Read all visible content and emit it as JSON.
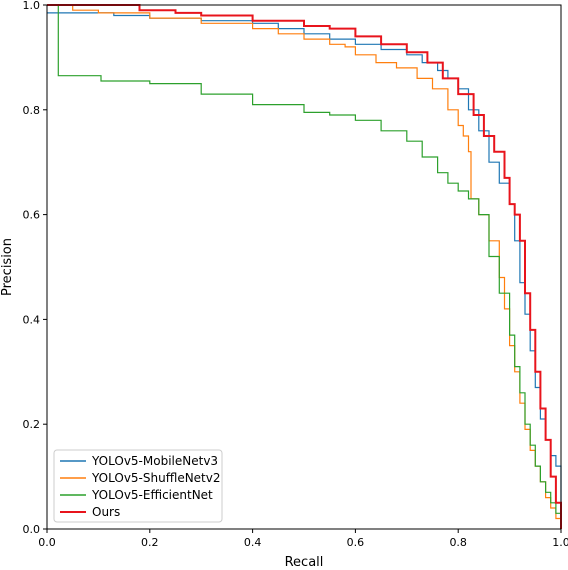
{
  "chart_data": {
    "type": "line",
    "title": "",
    "xlabel": "Recall",
    "ylabel": "Precision",
    "xlim": [
      0.0,
      1.0
    ],
    "ylim": [
      0.0,
      1.0
    ],
    "xticks": [
      "0.0",
      "0.2",
      "0.4",
      "0.6",
      "0.8",
      "1.0"
    ],
    "yticks": [
      "0.0",
      "0.2",
      "0.4",
      "0.6",
      "0.8",
      "1.0"
    ],
    "grid": false,
    "legend_position": "lower-left",
    "series": [
      {
        "name": "YOLOv5-MobileNetv3",
        "color": "#1f77b4",
        "points": [
          [
            0.0,
            0.985
          ],
          [
            0.12,
            0.985
          ],
          [
            0.13,
            0.98
          ],
          [
            0.2,
            0.975
          ],
          [
            0.3,
            0.97
          ],
          [
            0.4,
            0.965
          ],
          [
            0.45,
            0.955
          ],
          [
            0.5,
            0.945
          ],
          [
            0.55,
            0.935
          ],
          [
            0.6,
            0.925
          ],
          [
            0.65,
            0.915
          ],
          [
            0.7,
            0.905
          ],
          [
            0.73,
            0.89
          ],
          [
            0.76,
            0.875
          ],
          [
            0.78,
            0.86
          ],
          [
            0.8,
            0.84
          ],
          [
            0.82,
            0.8
          ],
          [
            0.84,
            0.76
          ],
          [
            0.86,
            0.7
          ],
          [
            0.88,
            0.66
          ],
          [
            0.9,
            0.62
          ],
          [
            0.91,
            0.55
          ],
          [
            0.92,
            0.47
          ],
          [
            0.93,
            0.41
          ],
          [
            0.94,
            0.34
          ],
          [
            0.95,
            0.27
          ],
          [
            0.96,
            0.21
          ],
          [
            0.97,
            0.17
          ],
          [
            0.98,
            0.14
          ],
          [
            0.99,
            0.12
          ],
          [
            1.0,
            0.0
          ]
        ]
      },
      {
        "name": "YOLOv5-ShuffleNetv2",
        "color": "#ff7f0e",
        "points": [
          [
            0.0,
            1.0
          ],
          [
            0.03,
            1.0
          ],
          [
            0.05,
            0.99
          ],
          [
            0.1,
            0.985
          ],
          [
            0.2,
            0.975
          ],
          [
            0.3,
            0.965
          ],
          [
            0.4,
            0.955
          ],
          [
            0.45,
            0.945
          ],
          [
            0.5,
            0.935
          ],
          [
            0.55,
            0.925
          ],
          [
            0.58,
            0.92
          ],
          [
            0.6,
            0.905
          ],
          [
            0.64,
            0.89
          ],
          [
            0.68,
            0.88
          ],
          [
            0.72,
            0.86
          ],
          [
            0.75,
            0.84
          ],
          [
            0.78,
            0.8
          ],
          [
            0.8,
            0.77
          ],
          [
            0.81,
            0.75
          ],
          [
            0.82,
            0.72
          ],
          [
            0.825,
            0.63
          ],
          [
            0.84,
            0.6
          ],
          [
            0.86,
            0.55
          ],
          [
            0.88,
            0.48
          ],
          [
            0.89,
            0.42
          ],
          [
            0.9,
            0.35
          ],
          [
            0.91,
            0.3
          ],
          [
            0.92,
            0.24
          ],
          [
            0.93,
            0.19
          ],
          [
            0.94,
            0.15
          ],
          [
            0.95,
            0.12
          ],
          [
            0.96,
            0.09
          ],
          [
            0.97,
            0.06
          ],
          [
            0.98,
            0.04
          ],
          [
            0.99,
            0.02
          ],
          [
            1.0,
            0.0
          ]
        ]
      },
      {
        "name": "YOLOv5-EfficientNet",
        "color": "#2ca02c",
        "points": [
          [
            0.0,
            1.0
          ],
          [
            0.02,
            1.0
          ],
          [
            0.022,
            0.865
          ],
          [
            0.1,
            0.865
          ],
          [
            0.105,
            0.855
          ],
          [
            0.2,
            0.85
          ],
          [
            0.3,
            0.83
          ],
          [
            0.4,
            0.81
          ],
          [
            0.5,
            0.795
          ],
          [
            0.55,
            0.79
          ],
          [
            0.6,
            0.78
          ],
          [
            0.65,
            0.76
          ],
          [
            0.7,
            0.74
          ],
          [
            0.73,
            0.71
          ],
          [
            0.76,
            0.68
          ],
          [
            0.78,
            0.66
          ],
          [
            0.8,
            0.645
          ],
          [
            0.82,
            0.63
          ],
          [
            0.84,
            0.6
          ],
          [
            0.86,
            0.52
          ],
          [
            0.88,
            0.45
          ],
          [
            0.9,
            0.37
          ],
          [
            0.91,
            0.31
          ],
          [
            0.92,
            0.26
          ],
          [
            0.93,
            0.2
          ],
          [
            0.94,
            0.16
          ],
          [
            0.95,
            0.12
          ],
          [
            0.96,
            0.09
          ],
          [
            0.97,
            0.07
          ],
          [
            0.98,
            0.05
          ],
          [
            0.99,
            0.03
          ],
          [
            1.0,
            0.0
          ]
        ]
      },
      {
        "name": "Ours",
        "color": "#e8141c",
        "points": [
          [
            0.0,
            1.0
          ],
          [
            0.1,
            1.0
          ],
          [
            0.18,
            0.99
          ],
          [
            0.25,
            0.985
          ],
          [
            0.3,
            0.98
          ],
          [
            0.4,
            0.97
          ],
          [
            0.5,
            0.96
          ],
          [
            0.55,
            0.955
          ],
          [
            0.6,
            0.94
          ],
          [
            0.65,
            0.925
          ],
          [
            0.7,
            0.91
          ],
          [
            0.74,
            0.89
          ],
          [
            0.77,
            0.86
          ],
          [
            0.8,
            0.83
          ],
          [
            0.83,
            0.79
          ],
          [
            0.85,
            0.75
          ],
          [
            0.87,
            0.72
          ],
          [
            0.89,
            0.67
          ],
          [
            0.9,
            0.62
          ],
          [
            0.91,
            0.6
          ],
          [
            0.92,
            0.55
          ],
          [
            0.93,
            0.45
          ],
          [
            0.94,
            0.38
          ],
          [
            0.95,
            0.3
          ],
          [
            0.96,
            0.23
          ],
          [
            0.97,
            0.17
          ],
          [
            0.98,
            0.1
          ],
          [
            0.99,
            0.05
          ],
          [
            1.0,
            0.0
          ]
        ]
      }
    ]
  }
}
